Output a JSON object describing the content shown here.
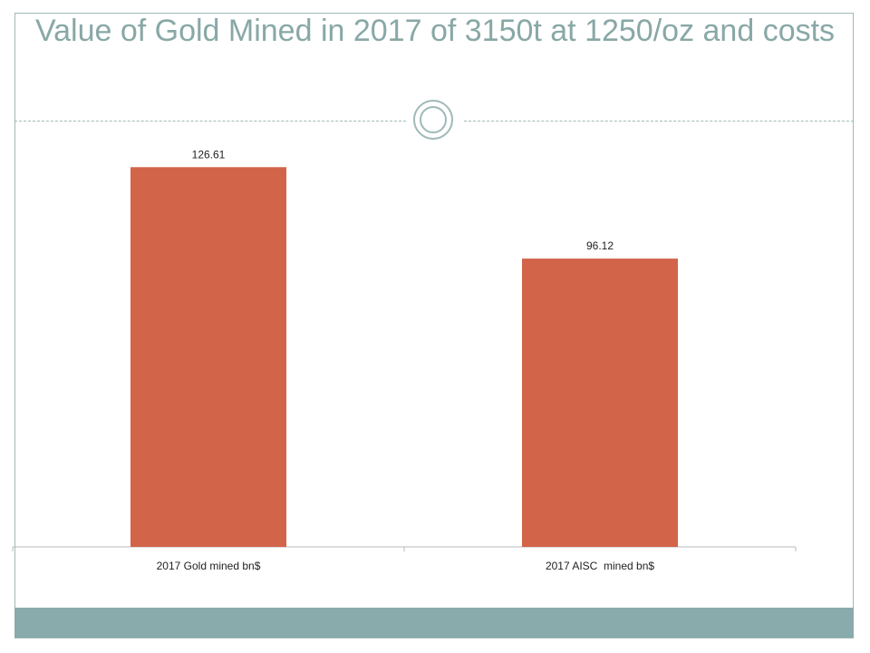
{
  "slide": {
    "title": "Value of Gold Mined in 2017 of 3150t at 1250/oz and costs"
  },
  "chart_data": {
    "type": "bar",
    "categories": [
      "2017 Gold mined bn$",
      "2017 AISC  mined bn$"
    ],
    "values": [
      126.61,
      96.12
    ],
    "data_labels": [
      "126.61",
      "96.12"
    ],
    "title": "Value of Gold Mined in 2017 of 3150t at 1250/oz and costs",
    "xlabel": "",
    "ylabel": "",
    "ylim": [
      0,
      140
    ],
    "grid": false,
    "legend": "none",
    "bar_color": "#d2644a"
  },
  "colors": {
    "accent": "#8aabab",
    "title": "#88a8a6",
    "bar": "#d2644a"
  }
}
